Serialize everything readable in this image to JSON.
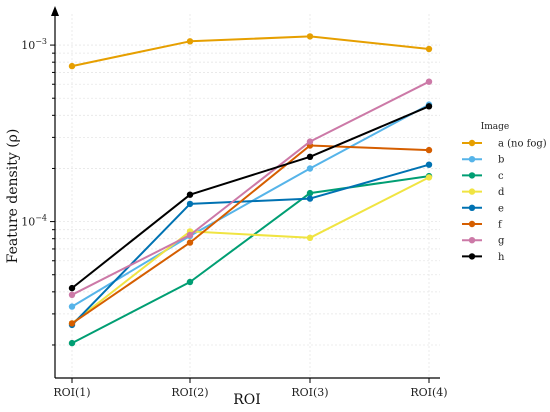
{
  "chart_data": {
    "type": "line",
    "x": [
      "ROI(1)",
      "ROI(2)",
      "ROI(3)",
      "ROI(4)"
    ],
    "xlabel": "ROI",
    "ylabel": "Feature density (ρ)",
    "yscale": "log",
    "ylim": [
      1.3e-05,
      0.0015
    ],
    "yticks": [
      {
        "value": 0.0001,
        "base": "10",
        "exp": "−4"
      },
      {
        "value": 0.001,
        "base": "10",
        "exp": "−3"
      }
    ],
    "grid": true,
    "legend": {
      "title": "Image",
      "placement": "right"
    },
    "series": [
      {
        "name": "a (no fog)",
        "color": "#E69F00",
        "values": [
          0.00076,
          0.00105,
          0.00112,
          0.00095
        ]
      },
      {
        "name": "b",
        "color": "#56B4E9",
        "values": [
          3.3e-05,
          8.3e-05,
          0.0002,
          0.00046
        ]
      },
      {
        "name": "c",
        "color": "#009E73",
        "values": [
          2.05e-05,
          4.55e-05,
          0.000145,
          0.000181
        ]
      },
      {
        "name": "d",
        "color": "#F0E442",
        "values": [
          2.65e-05,
          8.8e-05,
          8.1e-05,
          0.000178
        ]
      },
      {
        "name": "e",
        "color": "#0072B2",
        "values": [
          2.6e-05,
          0.000126,
          0.000135,
          0.00021
        ]
      },
      {
        "name": "f",
        "color": "#D55E00",
        "values": [
          2.65e-05,
          7.6e-05,
          0.00027,
          0.000254
        ]
      },
      {
        "name": "g",
        "color": "#CC79A7",
        "values": [
          3.85e-05,
          8.4e-05,
          0.000284,
          0.00062
        ]
      },
      {
        "name": "h",
        "color": "#000000",
        "values": [
          4.2e-05,
          0.000142,
          0.000233,
          0.00045
        ]
      }
    ]
  }
}
